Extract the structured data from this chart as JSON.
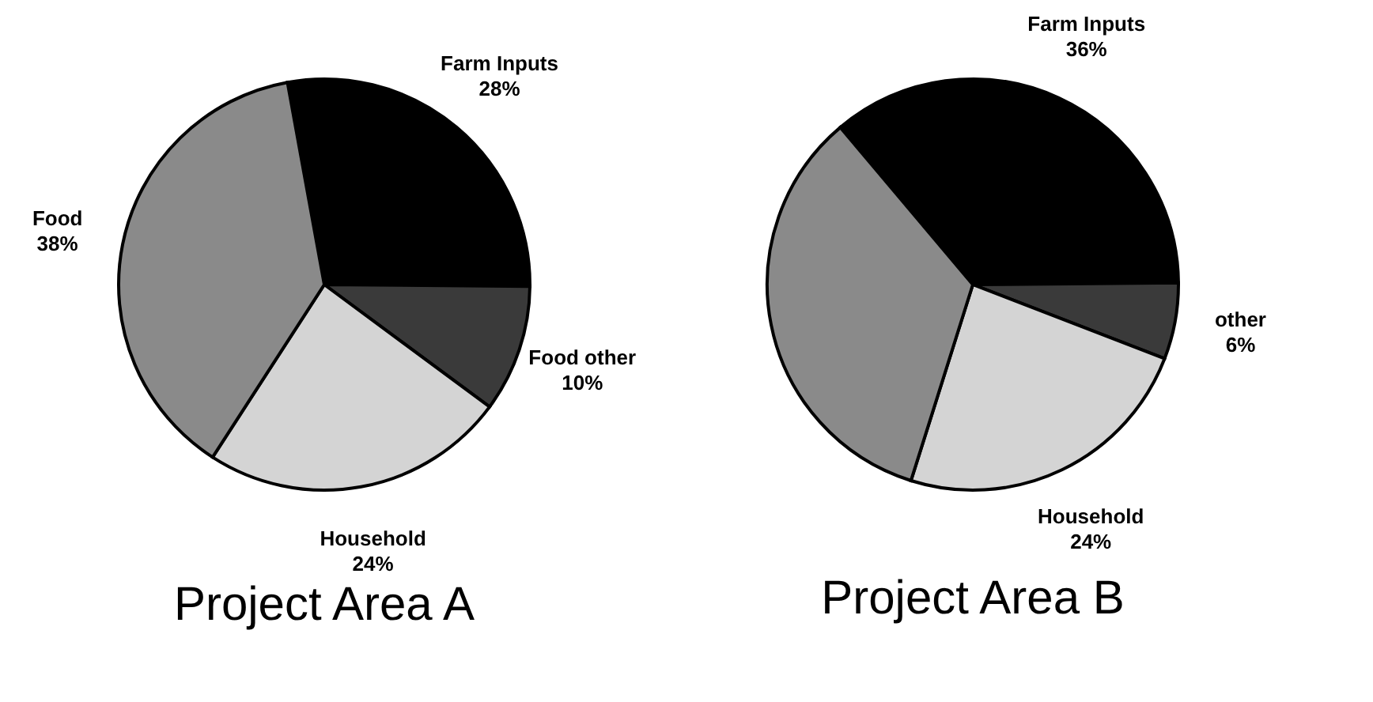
{
  "chart_data": [
    {
      "type": "pie",
      "title": "Project Area A",
      "categories": [
        "Farm Inputs",
        "Food other",
        "Household",
        "Food"
      ],
      "values": [
        28,
        10,
        24,
        38
      ],
      "colors": [
        "#000000",
        "#3a3a3a",
        "#d4d4d4",
        "#8a8a8a"
      ],
      "value_labels": [
        "28%",
        "10%",
        "24%",
        "38%"
      ]
    },
    {
      "type": "pie",
      "title": "Project Area B",
      "categories": [
        "Farm Inputs",
        "other",
        "Household",
        null
      ],
      "values": [
        36,
        6,
        24,
        34
      ],
      "colors": [
        "#000000",
        "#3a3a3a",
        "#d4d4d4",
        "#8a8a8a"
      ],
      "value_labels": [
        "36%",
        "6%",
        "24%",
        null
      ]
    }
  ]
}
